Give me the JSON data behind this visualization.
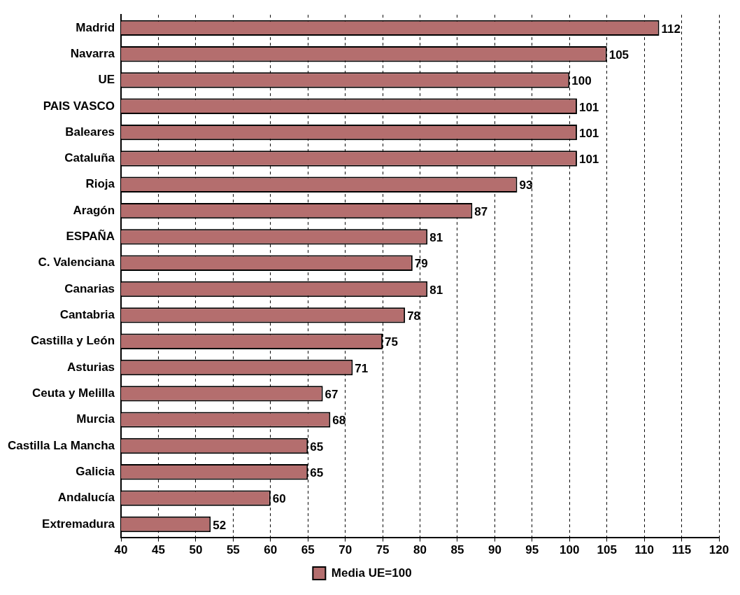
{
  "chart_data": {
    "type": "bar",
    "orientation": "horizontal",
    "categories": [
      "Madrid",
      "Navarra",
      "UE",
      "PAIS VASCO",
      "Baleares",
      "Cataluña",
      "Rioja",
      "Aragón",
      "ESPAÑA",
      "C. Valenciana",
      "Canarias",
      "Cantabria",
      "Castilla y León",
      "Asturias",
      "Ceuta y Melilla",
      "Murcia",
      "Castilla La Mancha",
      "Galicia",
      "Andalucía",
      "Extremadura"
    ],
    "series": [
      {
        "name": "Media UE=100",
        "color": "#b46e6e",
        "values": [
          112,
          105,
          100,
          101,
          101,
          101,
          93,
          87,
          81,
          79,
          81,
          78,
          75,
          71,
          67,
          68,
          65,
          65,
          60,
          52
        ]
      }
    ],
    "xlim": [
      40,
      120
    ],
    "xticks": [
      40,
      45,
      50,
      55,
      60,
      65,
      70,
      75,
      80,
      85,
      90,
      95,
      100,
      105,
      110,
      115,
      120
    ],
    "grid": "x",
    "legend": "bottom",
    "data_labels": true
  }
}
